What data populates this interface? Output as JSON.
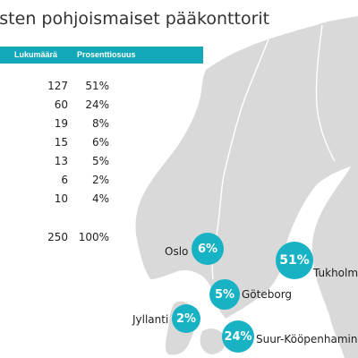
{
  "title": "isten pohjoismaiset pääkonttorit",
  "table": {
    "headers": [
      "Lukumäärä",
      "Prosenttiosuus"
    ],
    "rows": [
      {
        "count": "127",
        "pct": "51%"
      },
      {
        "count": "60",
        "pct": "24%"
      },
      {
        "count": "19",
        "pct": "8%"
      },
      {
        "count": "15",
        "pct": "6%"
      },
      {
        "count": "13",
        "pct": "5%"
      },
      {
        "count": "6",
        "pct": "2%"
      },
      {
        "count": "10",
        "pct": "4%"
      }
    ],
    "total": {
      "count": "250",
      "pct": "100%"
    }
  },
  "map_labels": [
    {
      "city": "Oslo",
      "pct": "6%"
    },
    {
      "city": "Tukholm",
      "pct": "51%"
    },
    {
      "city": "Göteborg",
      "pct": "5%"
    },
    {
      "city": "Jyllanti",
      "pct": "2%"
    },
    {
      "city": "Suur-Kööpenhamina",
      "pct": "24%"
    }
  ],
  "colors": {
    "accent": "#17b2c4",
    "header": "#12a7b9",
    "land": "#d9d9d9",
    "border": "#ffffff"
  },
  "chart_data": {
    "type": "table",
    "title": "isten pohjoismaiset pääkonttorit",
    "columns": [
      "Lukumäärä",
      "Prosenttiosuus"
    ],
    "rows": [
      [
        127,
        51
      ],
      [
        60,
        24
      ],
      [
        19,
        8
      ],
      [
        15,
        6
      ],
      [
        13,
        5
      ],
      [
        6,
        2
      ],
      [
        10,
        4
      ]
    ],
    "total": [
      250,
      100
    ],
    "map_bubbles": [
      {
        "city": "Tukholm",
        "value": 51
      },
      {
        "city": "Suur-Kööpenhamina",
        "value": 24
      },
      {
        "city": "Oslo",
        "value": 6
      },
      {
        "city": "Göteborg",
        "value": 5
      },
      {
        "city": "Jyllanti",
        "value": 2
      }
    ]
  }
}
